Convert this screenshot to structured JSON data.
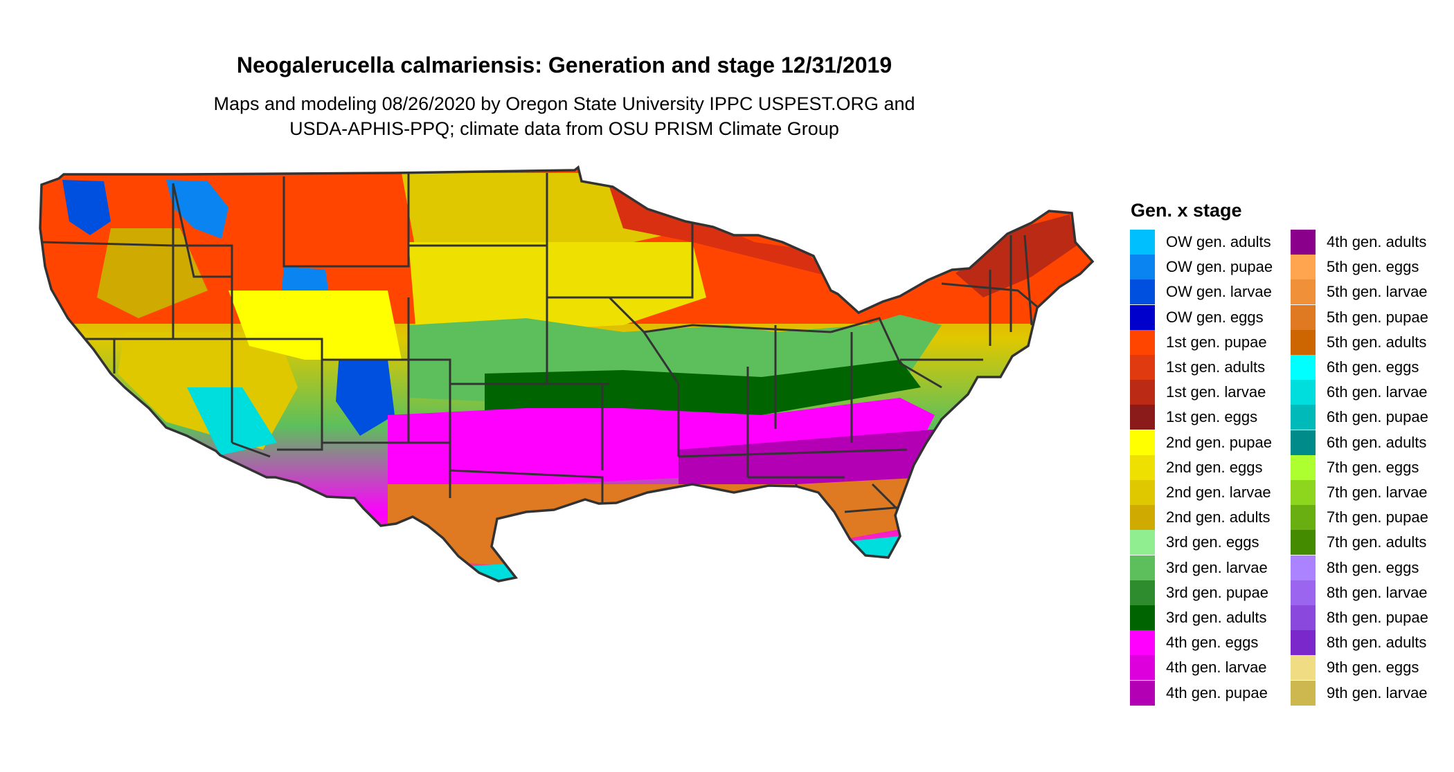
{
  "header": {
    "title": "Neogalerucella calmariensis: Generation and stage 12/31/2019",
    "subtitle_line1": "Maps and modeling 08/26/2020 by Oregon State University IPPC USPEST.ORG and",
    "subtitle_line2": "USDA-APHIS-PPQ; climate data from OSU PRISM Climate Group"
  },
  "legend": {
    "title": "Gen. x stage",
    "items": [
      {
        "label": "OW gen. adults",
        "color": "#00bfff"
      },
      {
        "label": "OW gen. pupae",
        "color": "#0a84f0"
      },
      {
        "label": "OW gen. larvae",
        "color": "#0050e0"
      },
      {
        "label": "OW gen. eggs",
        "color": "#0000cd"
      },
      {
        "label": "1st gen. pupae",
        "color": "#ff4500"
      },
      {
        "label": "1st gen. adults",
        "color": "#e03a10"
      },
      {
        "label": "1st gen. larvae",
        "color": "#bb2a14"
      },
      {
        "label": "1st gen. eggs",
        "color": "#8b1a1a"
      },
      {
        "label": "2nd gen. pupae",
        "color": "#ffff00"
      },
      {
        "label": "2nd gen. eggs",
        "color": "#eee000"
      },
      {
        "label": "2nd gen. larvae",
        "color": "#dfc800"
      },
      {
        "label": "2nd gen. adults",
        "color": "#cfaa00"
      },
      {
        "label": "3rd gen. eggs",
        "color": "#90ee90"
      },
      {
        "label": "3rd gen. larvae",
        "color": "#5cbf5c"
      },
      {
        "label": "3rd gen. pupae",
        "color": "#2e8b2e"
      },
      {
        "label": "3rd gen. adults",
        "color": "#006400"
      },
      {
        "label": "4th gen. eggs",
        "color": "#ff00ff"
      },
      {
        "label": "4th gen. larvae",
        "color": "#dd00dd"
      },
      {
        "label": "4th gen. pupae",
        "color": "#b400b4"
      },
      {
        "label": "4th gen. adults",
        "color": "#8b008b"
      },
      {
        "label": "5th gen. eggs",
        "color": "#ffa550"
      },
      {
        "label": "5th gen. larvae",
        "color": "#f09038"
      },
      {
        "label": "5th gen. pupae",
        "color": "#e07a22"
      },
      {
        "label": "5th gen. adults",
        "color": "#cd6600"
      },
      {
        "label": "6th gen. eggs",
        "color": "#00ffff"
      },
      {
        "label": "6th gen. larvae",
        "color": "#00dddd"
      },
      {
        "label": "6th gen. pupae",
        "color": "#00baba"
      },
      {
        "label": "6th gen. adults",
        "color": "#008b8b"
      },
      {
        "label": "7th gen. eggs",
        "color": "#adff2f"
      },
      {
        "label": "7th gen. larvae",
        "color": "#8ed61e"
      },
      {
        "label": "7th gen. pupae",
        "color": "#6aaf12"
      },
      {
        "label": "7th gen. adults",
        "color": "#458b00"
      },
      {
        "label": "8th gen. eggs",
        "color": "#ab82ff"
      },
      {
        "label": "8th gen. larvae",
        "color": "#9b65ef"
      },
      {
        "label": "8th gen. pupae",
        "color": "#8a48dd"
      },
      {
        "label": "8th gen. adults",
        "color": "#7a28cc"
      },
      {
        "label": "9th gen. eggs",
        "color": "#f0dc82"
      },
      {
        "label": "9th gen. larvae",
        "color": "#cdb850"
      }
    ]
  }
}
